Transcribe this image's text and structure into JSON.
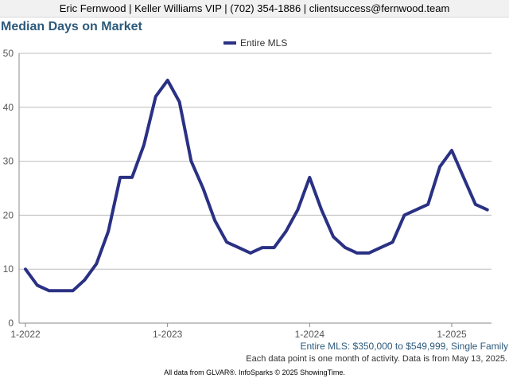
{
  "header": {
    "contact": "Eric Fernwood | Keller Williams VIP | (702) 354-1886 | clientsuccess@fernwood.team"
  },
  "page": {
    "filter_note": "Entire MLS: $350,000 to $549,999, Single Family",
    "data_note": "Each data point is one month of activity. Data is from May 13, 2025.",
    "credits": "All data from GLVAR®. InfoSparks © 2025 ShowingTime."
  },
  "colors": {
    "series": "#2a3184",
    "title": "#2d5a7c",
    "grid": "#bdbdbd"
  },
  "chart_data": {
    "type": "line",
    "title": "Median Days on Market",
    "xlabel": "",
    "ylabel": "",
    "ylim": [
      0,
      50
    ],
    "yticks": [
      0,
      10,
      20,
      30,
      40,
      50
    ],
    "xticks": [
      "1-2022",
      "1-2023",
      "1-2024",
      "1-2025"
    ],
    "grid": true,
    "legend_position": "top-center",
    "x": [
      "2022-01",
      "2022-02",
      "2022-03",
      "2022-04",
      "2022-05",
      "2022-06",
      "2022-07",
      "2022-08",
      "2022-09",
      "2022-10",
      "2022-11",
      "2022-12",
      "2023-01",
      "2023-02",
      "2023-03",
      "2023-04",
      "2023-05",
      "2023-06",
      "2023-07",
      "2023-08",
      "2023-09",
      "2023-10",
      "2023-11",
      "2023-12",
      "2024-01",
      "2024-02",
      "2024-03",
      "2024-04",
      "2024-05",
      "2024-06",
      "2024-07",
      "2024-08",
      "2024-09",
      "2024-10",
      "2024-11",
      "2024-12",
      "2025-01",
      "2025-02",
      "2025-03",
      "2025-04"
    ],
    "series": [
      {
        "name": "Entire MLS",
        "values": [
          10,
          7,
          6,
          6,
          6,
          8,
          11,
          17,
          27,
          27,
          33,
          42,
          45,
          41,
          30,
          25,
          19,
          15,
          14,
          13,
          14,
          14,
          17,
          21,
          27,
          21,
          16,
          14,
          13,
          13,
          14,
          15,
          20,
          21,
          22,
          29,
          32,
          27,
          22,
          21
        ]
      }
    ]
  }
}
